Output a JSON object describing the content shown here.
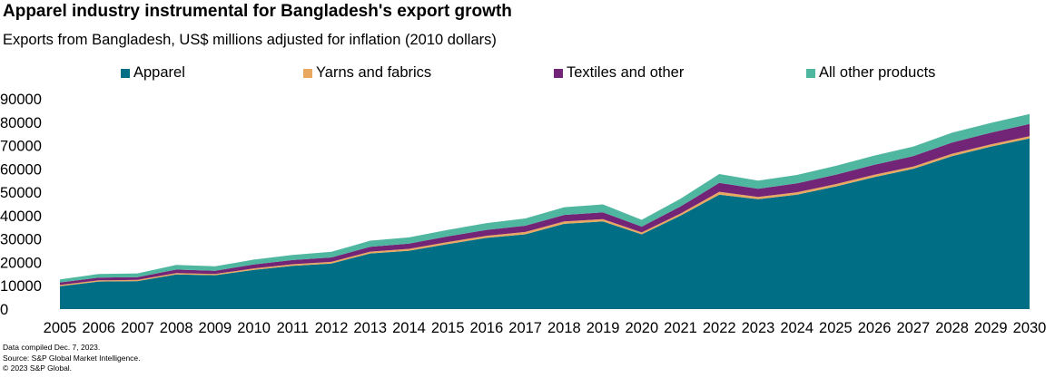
{
  "header": {
    "title": "Apparel industry instrumental for Bangladesh's export growth",
    "subtitle": "Exports from Bangladesh, US$ millions adjusted for inflation (2010 dollars)"
  },
  "colors": {
    "apparel": "#006F85",
    "yarns": "#E8A860",
    "textiles": "#722477",
    "other": "#4FB7A0"
  },
  "chart_data": {
    "type": "area",
    "stacked": true,
    "title": "Apparel industry instrumental for Bangladesh's export growth",
    "subtitle": "Exports from Bangladesh, US$ millions adjusted for inflation (2010 dollars)",
    "x": [
      2005,
      2006,
      2007,
      2008,
      2009,
      2010,
      2011,
      2012,
      2013,
      2014,
      2015,
      2016,
      2017,
      2018,
      2019,
      2020,
      2021,
      2022,
      2023,
      2024,
      2025,
      2026,
      2027,
      2028,
      2029,
      2030
    ],
    "ylim": [
      0,
      90000
    ],
    "yticks": [
      0,
      10000,
      20000,
      30000,
      40000,
      50000,
      60000,
      70000,
      80000,
      90000
    ],
    "legend_position": "top",
    "series": [
      {
        "name": "Apparel",
        "color_key": "apparel",
        "values": [
          9800,
          11800,
          12000,
          14800,
          14500,
          16800,
          18500,
          19500,
          23800,
          25000,
          27800,
          30500,
          32000,
          36500,
          37500,
          32000,
          40000,
          49000,
          47000,
          49000,
          52500,
          56500,
          60000,
          65500,
          69500,
          73000
        ]
      },
      {
        "name": "Yarns and fabrics",
        "color_key": "yarns",
        "values": [
          500,
          500,
          500,
          600,
          500,
          600,
          700,
          700,
          800,
          800,
          900,
          900,
          1000,
          1000,
          1000,
          800,
          900,
          1200,
          1000,
          1000,
          1000,
          1000,
          1000,
          1000,
          1000,
          1000
        ]
      },
      {
        "name": "Textiles and other",
        "color_key": "textiles",
        "values": [
          1100,
          1200,
          1200,
          1500,
          1400,
          1700,
          1800,
          1900,
          2100,
          2200,
          2400,
          2500,
          2700,
          2800,
          2900,
          2500,
          3000,
          3800,
          3500,
          3800,
          4000,
          4300,
          4500,
          4800,
          5000,
          5200
        ]
      },
      {
        "name": "All other products",
        "color_key": "other",
        "values": [
          1300,
          1500,
          1600,
          2000,
          1900,
          2100,
          2200,
          2400,
          2600,
          2700,
          2800,
          2900,
          3100,
          3300,
          3400,
          2900,
          3300,
          3800,
          3500,
          3600,
          3800,
          3900,
          4000,
          4200,
          4200,
          4300
        ]
      }
    ]
  },
  "footnotes": {
    "line1": "Data compiled Dec. 7, 2023.",
    "line2": "Source: S&P Global Market Intelligence.",
    "line3": "© 2023 S&P Global."
  }
}
